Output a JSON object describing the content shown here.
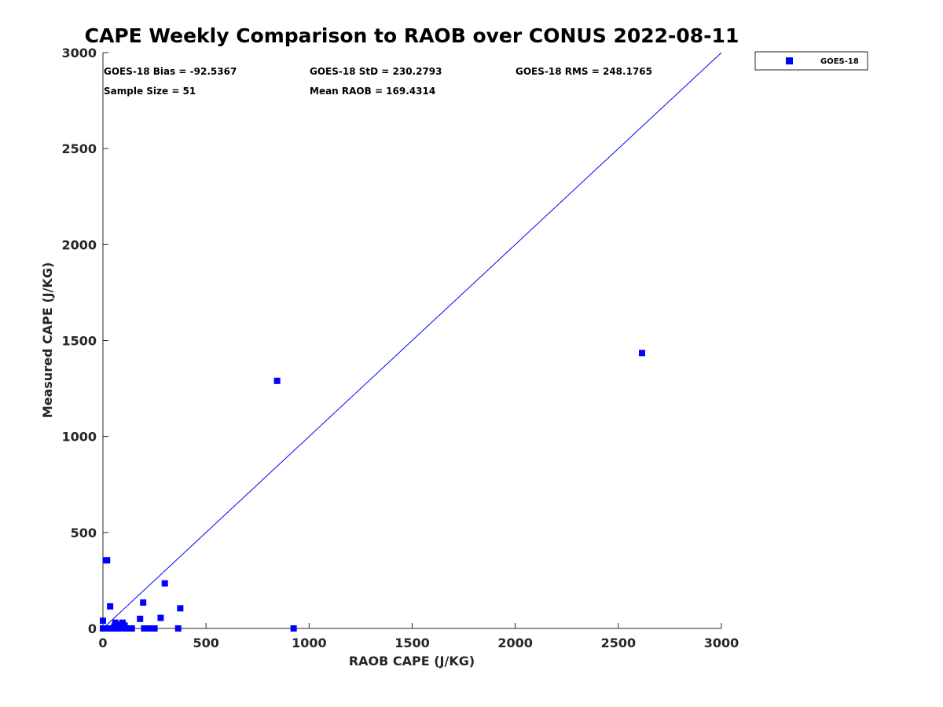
{
  "chart_data": {
    "type": "scatter",
    "title": "CAPE Weekly Comparison to RAOB over CONUS 2022-08-11",
    "xlabel": "RAOB CAPE (J/KG)",
    "ylabel": "Measured CAPE (J/KG)",
    "xlim": [
      0,
      3000
    ],
    "ylim": [
      0,
      3000
    ],
    "xticks": [
      0,
      500,
      1000,
      1500,
      2000,
      2500,
      3000
    ],
    "yticks": [
      0,
      500,
      1000,
      1500,
      2000,
      2500,
      3000
    ],
    "xtick_labels": [
      "0",
      "500",
      "1000",
      "1500",
      "2000",
      "2500",
      "3000"
    ],
    "ytick_labels": [
      "0",
      "500",
      "1000",
      "1500",
      "2000",
      "2500",
      "3000"
    ],
    "grid": false,
    "legend_position": "top-right outside",
    "reference_line": {
      "name": "1:1 line",
      "from": [
        0,
        0
      ],
      "to": [
        3000,
        3000
      ],
      "color": "#0000ff"
    },
    "stats": {
      "bias": "GOES-18 Bias = -92.5367",
      "std": "GOES-18 StD = 230.2793",
      "rms": "GOES-18 RMS = 248.1765",
      "sample_size": "Sample Size = 51",
      "mean_raob": "Mean RAOB = 169.4314"
    },
    "series": [
      {
        "name": "GOES-18",
        "color": "#0000ff",
        "marker": "square",
        "points": [
          [
            0,
            0
          ],
          [
            0,
            40
          ],
          [
            5,
            0
          ],
          [
            10,
            0
          ],
          [
            15,
            355
          ],
          [
            20,
            355
          ],
          [
            25,
            0
          ],
          [
            35,
            115
          ],
          [
            40,
            0
          ],
          [
            45,
            0
          ],
          [
            50,
            0
          ],
          [
            55,
            10
          ],
          [
            60,
            30
          ],
          [
            65,
            0
          ],
          [
            70,
            20
          ],
          [
            75,
            0
          ],
          [
            80,
            0
          ],
          [
            85,
            10
          ],
          [
            90,
            0
          ],
          [
            95,
            30
          ],
          [
            100,
            0
          ],
          [
            105,
            15
          ],
          [
            110,
            0
          ],
          [
            120,
            0
          ],
          [
            130,
            0
          ],
          [
            140,
            0
          ],
          [
            180,
            50
          ],
          [
            195,
            135
          ],
          [
            200,
            0
          ],
          [
            210,
            0
          ],
          [
            220,
            0
          ],
          [
            230,
            0
          ],
          [
            240,
            0
          ],
          [
            250,
            0
          ],
          [
            280,
            55
          ],
          [
            300,
            235
          ],
          [
            365,
            0
          ],
          [
            375,
            105
          ],
          [
            845,
            1290
          ],
          [
            925,
            0
          ],
          [
            2615,
            1435
          ]
        ]
      }
    ]
  }
}
